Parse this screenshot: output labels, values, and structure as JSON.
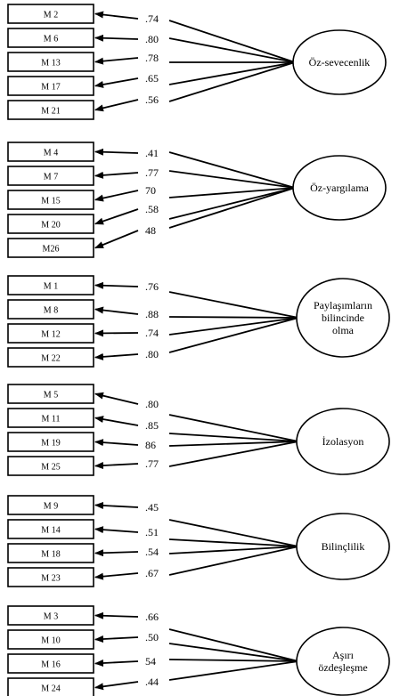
{
  "groups": [
    {
      "factor": [
        "Öz-sevecenlik"
      ],
      "items": [
        "M 2",
        "M 6",
        "M 13",
        "M 17",
        "M 21"
      ],
      "loadings": [
        ".74",
        ".80",
        ".78",
        ".65",
        ".56"
      ]
    },
    {
      "factor": [
        "Öz-yargılama"
      ],
      "items": [
        "M 4",
        "M 7",
        "M 15",
        "M 20",
        "M26"
      ],
      "loadings": [
        ".41",
        ".77",
        "70",
        ".58",
        "48"
      ]
    },
    {
      "factor": [
        "Paylaşımların",
        "bilincinde",
        "olma"
      ],
      "items": [
        "M 1",
        "M 8",
        "M 12",
        "M 22"
      ],
      "loadings": [
        ".76",
        ".88",
        ".74",
        ".80"
      ]
    },
    {
      "factor": [
        "İzolasyon"
      ],
      "items": [
        "M 5",
        "M 11",
        "M 19",
        "M 25"
      ],
      "loadings": [
        ".80",
        ".85",
        "86",
        ".77"
      ]
    },
    {
      "factor": [
        "Bilinçlilik"
      ],
      "items": [
        "M 9",
        "M 14",
        "M 18",
        "M 23"
      ],
      "loadings": [
        ".45",
        ".51",
        ".54",
        ".67"
      ]
    },
    {
      "factor": [
        "Aşırı",
        "özdeşleşme"
      ],
      "items": [
        "M 3",
        "M 10",
        "M 16",
        "M 24"
      ],
      "loadings": [
        ".66",
        ".50",
        "54",
        ".44"
      ]
    }
  ]
}
